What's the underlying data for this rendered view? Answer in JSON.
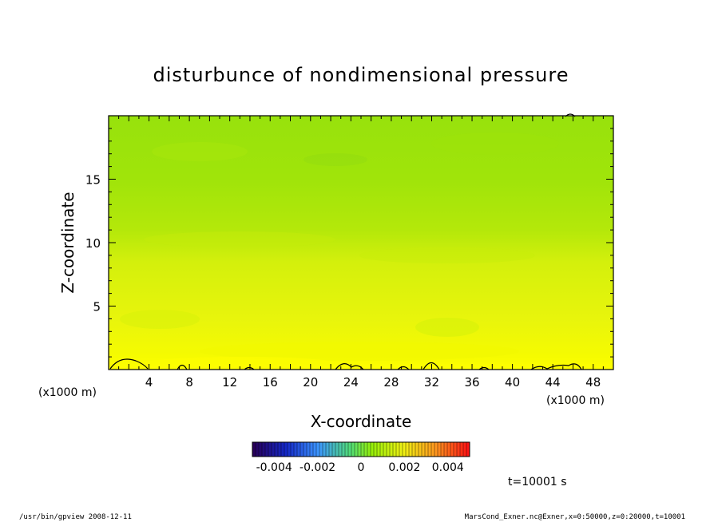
{
  "chart_data": {
    "type": "heatmap",
    "title": "disturbunce of nondimensional pressure",
    "xlabel": "X-coordinate",
    "ylabel": "Z-coordinate",
    "x_unit_left": "(x1000 m)",
    "x_unit_right": "(x1000 m)",
    "xlim": [
      0,
      50
    ],
    "ylim": [
      0,
      20
    ],
    "x_ticks": [
      "4",
      "8",
      "12",
      "16",
      "20",
      "24",
      "28",
      "32",
      "36",
      "40",
      "44",
      "48"
    ],
    "y_ticks": [
      "5",
      "10",
      "15"
    ],
    "time_label": "t=10001 s",
    "colorbar": {
      "range": [
        -0.005,
        0.005
      ],
      "tick_labels": [
        "-0.004",
        "-0.002",
        "0",
        "0.002",
        "0.004"
      ]
    },
    "field_summary": {
      "near_surface_value_range": [
        0.001,
        0.002
      ],
      "upper_value_range": [
        0.0002,
        0.0006
      ]
    }
  },
  "footer": {
    "left": "/usr/bin/gpview   2008-12-11",
    "right": "MarsCond_Exner.nc@Exner,x=0:50000,z=0:20000,t=10001"
  },
  "colors": {
    "low": "#2a0a6e",
    "mid": "#9cf000",
    "high": "#ff2a1a"
  }
}
